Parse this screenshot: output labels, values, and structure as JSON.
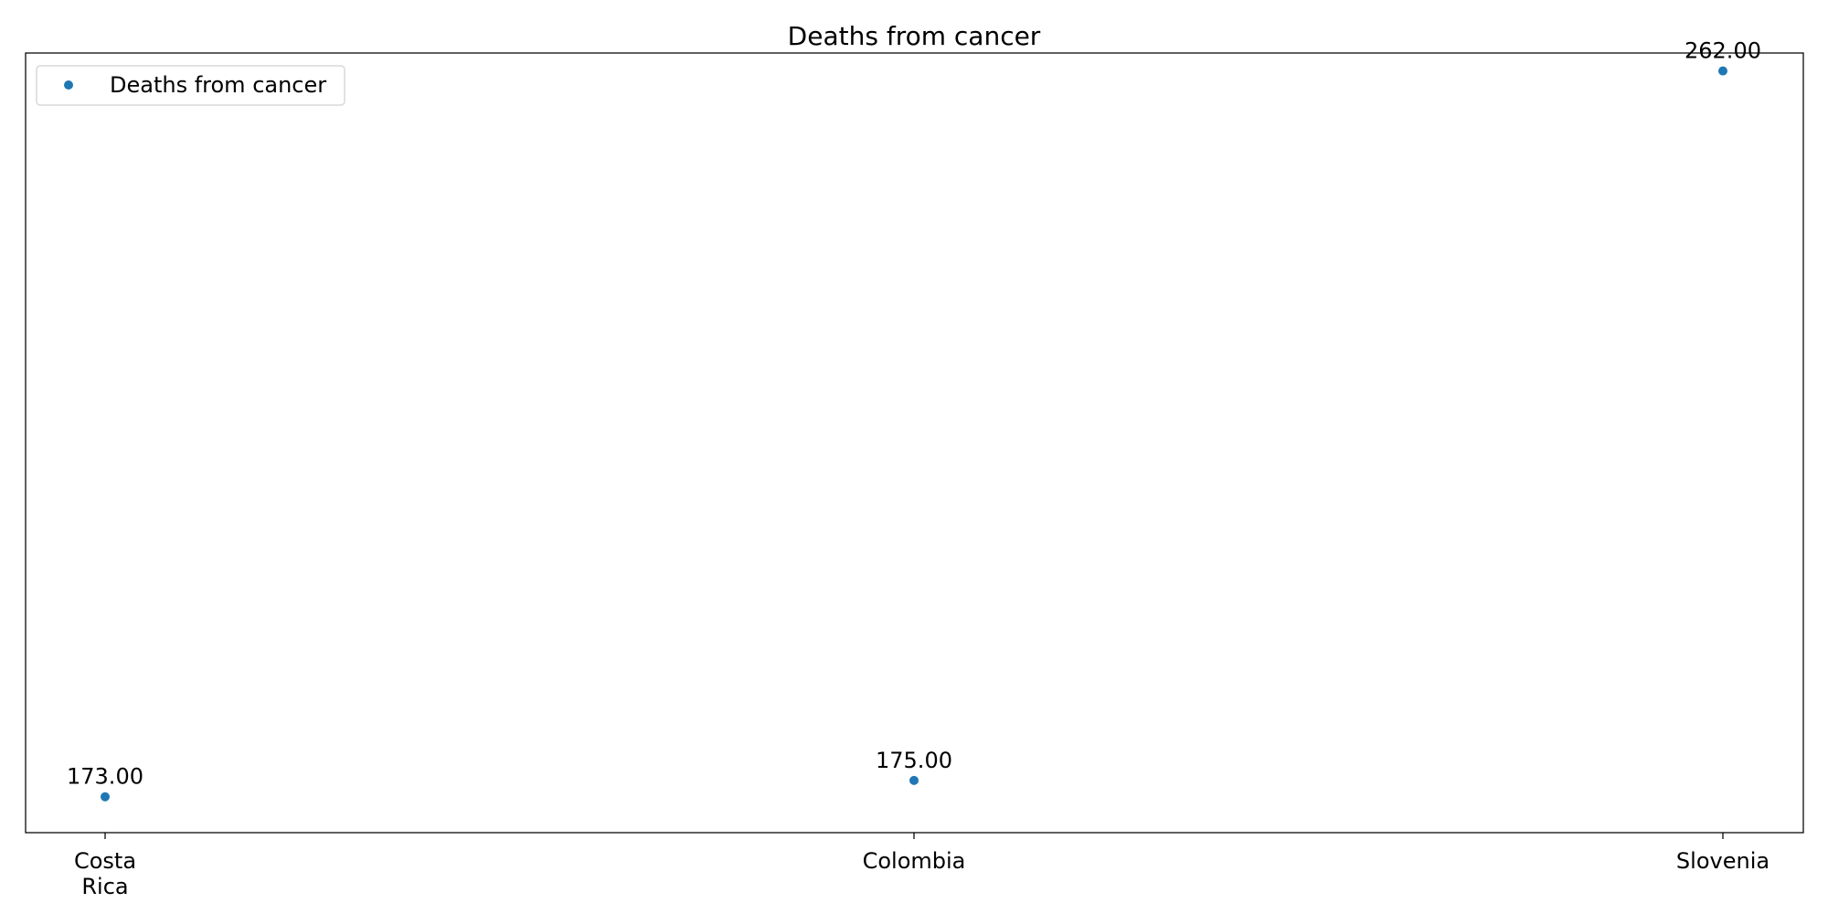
{
  "chart_data": {
    "type": "scatter",
    "title": "Deaths from cancer",
    "xlabel": "",
    "ylabel": "",
    "categories": [
      "Costa Rica",
      "Colombia",
      "Slovenia"
    ],
    "series": [
      {
        "name": "Deaths from cancer",
        "values": [
          173.0,
          175.0,
          262.0
        ],
        "labels": [
          "173.00",
          "175.00",
          "262.00"
        ],
        "color": "#1f77b4"
      }
    ],
    "ylim": [
      168.6,
      264.2
    ],
    "grid": false,
    "y_ticks_visible": false,
    "legend_position": "top-left"
  }
}
